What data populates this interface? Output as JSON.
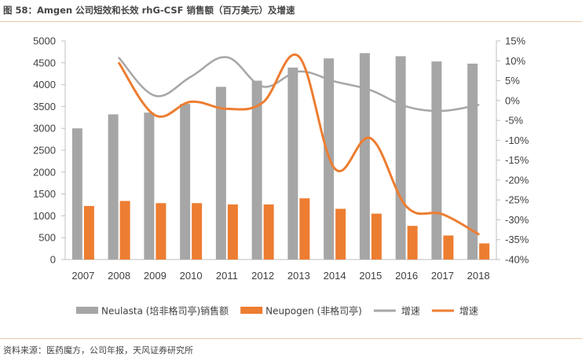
{
  "header": {
    "title": "图 58：Amgen 公司短效和长效  rhG-CSF  销售额（百万美元）及增速"
  },
  "footer": {
    "source": "资料来源：医药魔方，公司年报，天风证券研究所"
  },
  "chart_data": {
    "type": "bar",
    "title": "",
    "categories": [
      "2007",
      "2008",
      "2009",
      "2010",
      "2011",
      "2012",
      "2013",
      "2014",
      "2015",
      "2016",
      "2017",
      "2018"
    ],
    "series": [
      {
        "name": "Neulasta (培非格司亭)销售额",
        "kind": "bar",
        "axis": "left",
        "color": "#a6a6a6",
        "values": [
          3000,
          3320,
          3360,
          3560,
          3950,
          4090,
          4390,
          4600,
          4720,
          4650,
          4530,
          4480
        ]
      },
      {
        "name": "Neupogen (非格司亭)",
        "kind": "bar",
        "axis": "left",
        "color": "#ed7d31",
        "values": [
          1225,
          1340,
          1290,
          1290,
          1260,
          1260,
          1400,
          1160,
          1050,
          770,
          550,
          370
        ]
      },
      {
        "name": "增速",
        "kind": "line",
        "axis": "right",
        "color": "#a6a6a6",
        "values": [
          null,
          10.7,
          1.2,
          6.0,
          10.9,
          3.5,
          7.3,
          4.8,
          2.6,
          -1.5,
          -2.6,
          -1.1
        ]
      },
      {
        "name": "增速",
        "kind": "line",
        "axis": "right",
        "color": "#ed7d31",
        "values": [
          null,
          9.4,
          -3.7,
          -0.3,
          -2.1,
          -0.5,
          11.1,
          -17.1,
          -9.5,
          -26.7,
          -28.6,
          -33.6
        ]
      }
    ],
    "y_left": {
      "min": 0,
      "max": 5000,
      "step": 500,
      "ticks": [
        "0",
        "500",
        "1000",
        "1500",
        "2000",
        "2500",
        "3000",
        "3500",
        "4000",
        "4500",
        "5000"
      ]
    },
    "y_right": {
      "min": -40,
      "max": 15,
      "step": 5,
      "ticks": [
        "-40%",
        "-35%",
        "-30%",
        "-25%",
        "-20%",
        "-15%",
        "-10%",
        "-5%",
        "0%",
        "5%",
        "10%",
        "15%"
      ]
    },
    "grid": false,
    "legend_position": "bottom"
  }
}
